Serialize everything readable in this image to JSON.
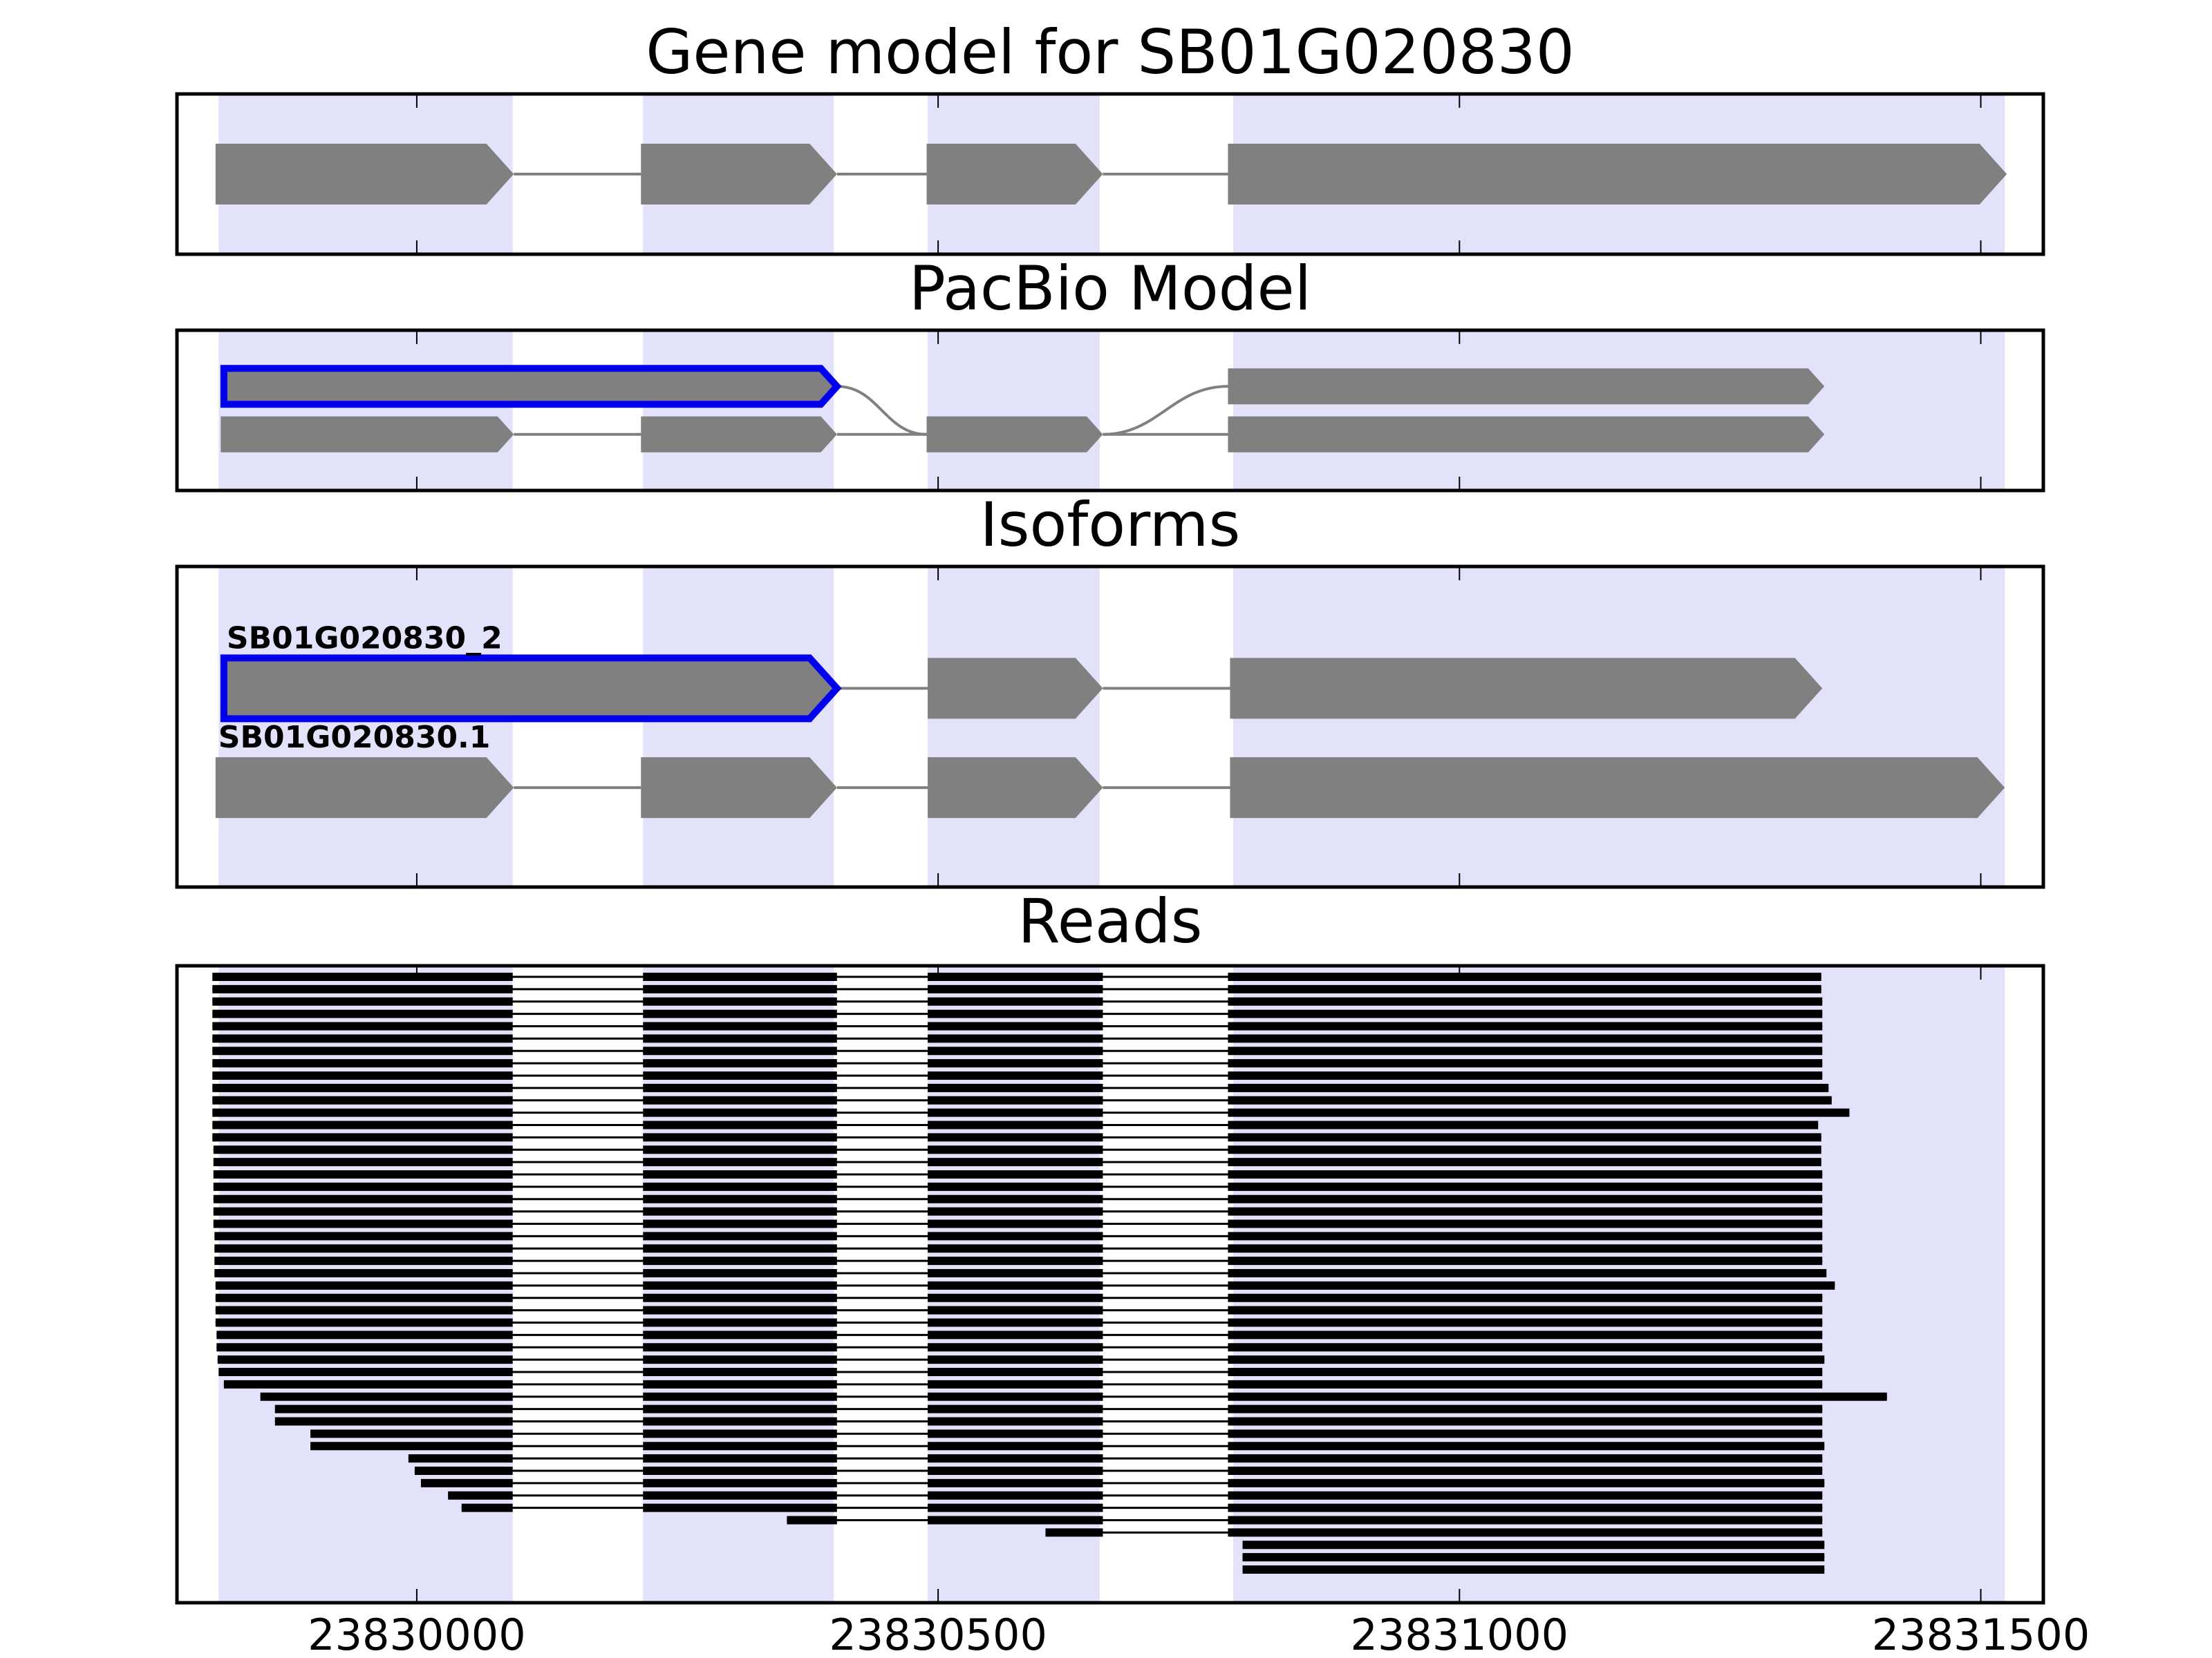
{
  "colors": {
    "exon_band": "#e2e2fa",
    "feature_fill": "#808080",
    "intron_line": "#808080",
    "highlight": "#0000ee",
    "read": "#000000",
    "frame": "#000000"
  },
  "chart_data": {
    "type": "gene-structure",
    "xlim": [
      23829770,
      23831560
    ],
    "xticks": [
      23830000,
      23830500,
      23831000,
      23831500
    ],
    "xtick_labels": [
      "23830000",
      "23830500",
      "23831000",
      "23831500"
    ],
    "grid": false,
    "exon_bands": [
      [
        23829810,
        23830092
      ],
      [
        23830217,
        23830400
      ],
      [
        23830490,
        23830655
      ],
      [
        23830783,
        23831523
      ]
    ],
    "panels": [
      {
        "title": "Gene model for SB01G020830",
        "tracks": [
          {
            "y": 0.5,
            "exons": [
              [
                23829807,
                23830093
              ],
              [
                23830215,
                23830403
              ],
              [
                23830489,
                23830658
              ],
              [
                23830778,
                23831525
              ]
            ]
          }
        ]
      },
      {
        "title": "PacBio Model",
        "tracks": [
          {
            "y": 0.65,
            "highlight": true,
            "exons": [
              [
                23829815,
                23830403
              ]
            ],
            "join_to": {
              "track": 1,
              "exon": 2
            },
            "join_from": {
              "track": 1,
              "exon": 2
            },
            "rejoin": [
              23830778,
              23831350
            ]
          },
          {
            "y": 0.35,
            "exons": [
              [
                23829812,
                23830093
              ],
              [
                23830215,
                23830403
              ],
              [
                23830489,
                23830658
              ],
              [
                23830778,
                23831350
              ]
            ]
          }
        ]
      },
      {
        "title": "Isoforms",
        "tracks": [
          {
            "y": 0.62,
            "label": "SB01G020830_2",
            "highlight": true,
            "exons": [
              [
                23829815,
                23830403
              ],
              [
                23830490,
                23830658
              ],
              [
                23830780,
                23831348
              ]
            ]
          },
          {
            "y": 0.31,
            "label": "SB01G020830.1",
            "exons": [
              [
                23829807,
                23830093
              ],
              [
                23830215,
                23830403
              ],
              [
                23830490,
                23830658
              ],
              [
                23830780,
                23831523
              ]
            ]
          }
        ]
      },
      {
        "title": "Reads",
        "reads": [
          {
            "s": 23829804,
            "e": 23831347
          },
          {
            "s": 23829804,
            "e": 23831347
          },
          {
            "s": 23829804,
            "e": 23831348
          },
          {
            "s": 23829804,
            "e": 23831348
          },
          {
            "s": 23829804,
            "e": 23831348
          },
          {
            "s": 23829804,
            "e": 23831348
          },
          {
            "s": 23829804,
            "e": 23831348
          },
          {
            "s": 23829804,
            "e": 23831348
          },
          {
            "s": 23829804,
            "e": 23831348
          },
          {
            "s": 23829804,
            "e": 23831354
          },
          {
            "s": 23829804,
            "e": 23831357
          },
          {
            "s": 23829804,
            "e": 23831374
          },
          {
            "s": 23829804,
            "e": 23831344
          },
          {
            "s": 23829804,
            "e": 23831347
          },
          {
            "s": 23829805,
            "e": 23831347
          },
          {
            "s": 23829805,
            "e": 23831347
          },
          {
            "s": 23829805,
            "e": 23831348
          },
          {
            "s": 23829805,
            "e": 23831348
          },
          {
            "s": 23829805,
            "e": 23831348
          },
          {
            "s": 23829805,
            "e": 23831348
          },
          {
            "s": 23829805,
            "e": 23831348
          },
          {
            "s": 23829806,
            "e": 23831348
          },
          {
            "s": 23829806,
            "e": 23831348
          },
          {
            "s": 23829806,
            "e": 23831348
          },
          {
            "s": 23829806,
            "e": 23831352
          },
          {
            "s": 23829807,
            "e": 23831360
          },
          {
            "s": 23829807,
            "e": 23831348
          },
          {
            "s": 23829807,
            "e": 23831348
          },
          {
            "s": 23829807,
            "e": 23831348
          },
          {
            "s": 23829808,
            "e": 23831348
          },
          {
            "s": 23829808,
            "e": 23831348
          },
          {
            "s": 23829809,
            "e": 23831350
          },
          {
            "s": 23829810,
            "e": 23831348
          },
          {
            "s": 23829815,
            "e": 23831348
          },
          {
            "s": 23829850,
            "e": 23831410
          },
          {
            "s": 23829864,
            "e": 23831348
          },
          {
            "s": 23829864,
            "e": 23831348
          },
          {
            "s": 23829898,
            "e": 23831348
          },
          {
            "s": 23829898,
            "e": 23831350
          },
          {
            "s": 23829992,
            "e": 23831348
          },
          {
            "s": 23829998,
            "e": 23831348
          },
          {
            "s": 23830004,
            "e": 23831350
          },
          {
            "s": 23830030,
            "e": 23831348
          },
          {
            "s": 23830043,
            "e": 23831348
          },
          {
            "s": 23830355,
            "e": 23831348
          },
          {
            "s": 23830603,
            "e": 23831348
          },
          {
            "s": 23830792,
            "e": 23831350
          },
          {
            "s": 23830792,
            "e": 23831350
          },
          {
            "s": 23830792,
            "e": 23831350
          }
        ]
      }
    ]
  }
}
